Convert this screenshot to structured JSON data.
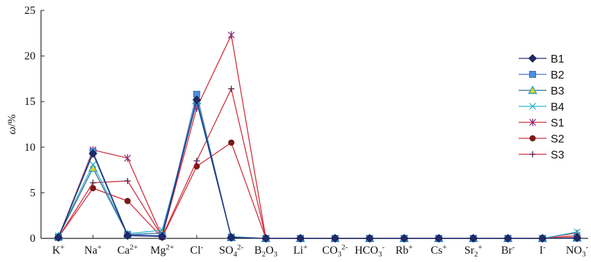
{
  "chart_data": {
    "type": "line",
    "title": "",
    "xlabel": "",
    "ylabel": "ω/%",
    "ylabel_parts": {
      "symbol": "ω",
      "unit": "/%"
    },
    "ylim": [
      0,
      25
    ],
    "yticks": [
      0,
      5,
      10,
      15,
      20,
      25
    ],
    "grid": false,
    "legend_position": "right",
    "categories": [
      "K+",
      "Na+",
      "Ca2+",
      "Mg2+",
      "Cl-",
      "SO42-",
      "B2O3",
      "Li+",
      "CO32-",
      "HCO3-",
      "Rb+",
      "Cs+",
      "Sr2+",
      "Br-",
      "I-",
      "NO3-"
    ],
    "category_labels": [
      {
        "base": "K",
        "sup": "+"
      },
      {
        "base": "Na",
        "sup": "+"
      },
      {
        "base": "Ca",
        "sup": "2+"
      },
      {
        "base": "Mg",
        "sup": "2+"
      },
      {
        "base": "Cl",
        "sup": "-"
      },
      {
        "base": "SO",
        "sub": "4",
        "sup": "2-"
      },
      {
        "base": "B",
        "sub": "2",
        "base2": "O",
        "sub2": "3"
      },
      {
        "base": "Li",
        "sup": "+"
      },
      {
        "base": "CO",
        "sub": "3",
        "sup": "2-"
      },
      {
        "base": "HCO",
        "sub": "3",
        "sup": "-"
      },
      {
        "base": "Rb",
        "sup": "+"
      },
      {
        "base": "Cs",
        "sup": "+"
      },
      {
        "base": "Sr",
        "sub": "2",
        "sup": "+"
      },
      {
        "base": "Br",
        "sup": "-"
      },
      {
        "base": "I",
        "sup": "-"
      },
      {
        "base": "NO",
        "sub": "3",
        "sup": "-"
      }
    ],
    "series": [
      {
        "name": "B1",
        "color": "#1f2a6b",
        "marker": "diamond",
        "values": [
          0.1,
          9.3,
          0.3,
          0.2,
          15.2,
          0.1,
          0,
          0,
          0,
          0,
          0,
          0,
          0,
          0,
          0,
          0.05
        ]
      },
      {
        "name": "B2",
        "color": "#3d6fc9",
        "marker": "square",
        "values": [
          0.1,
          9.5,
          0.4,
          0.3,
          15.8,
          0.1,
          0,
          0,
          0,
          0,
          0,
          0,
          0,
          0,
          0,
          0.05
        ]
      },
      {
        "name": "B3",
        "color": "#2b6a8e",
        "marker": "triangle",
        "values": [
          0.2,
          7.7,
          0.4,
          0.6,
          15.1,
          0.1,
          0,
          0,
          0,
          0,
          0,
          0,
          0,
          0,
          0,
          0.05
        ]
      },
      {
        "name": "B4",
        "color": "#29b2cf",
        "marker": "x",
        "values": [
          0.3,
          8.1,
          0.5,
          0.9,
          14.9,
          0.2,
          0,
          0,
          0,
          0,
          0,
          0,
          0,
          0,
          0,
          0.7
        ]
      },
      {
        "name": "S1",
        "color": "#cf2b3a",
        "marker": "star",
        "marker_color": "#8a2a7a",
        "values": [
          0.1,
          9.7,
          8.8,
          0.2,
          14.3,
          22.3,
          0,
          0,
          0,
          0,
          0,
          0,
          0,
          0,
          0,
          0.1
        ]
      },
      {
        "name": "S2",
        "color": "#cf2b3a",
        "marker": "circle",
        "marker_color": "#7a1a1a",
        "values": [
          0.1,
          5.5,
          4.1,
          0.1,
          7.9,
          10.5,
          0,
          0,
          0,
          0,
          0,
          0,
          0,
          0,
          0,
          0.3
        ]
      },
      {
        "name": "S3",
        "color": "#cf2b3a",
        "marker": "plus",
        "marker_color": "#4a1a4a",
        "values": [
          0.1,
          6.1,
          6.3,
          0.2,
          8.5,
          16.4,
          0,
          0,
          0,
          0,
          0,
          0,
          0,
          0,
          0,
          0.6
        ]
      }
    ]
  }
}
